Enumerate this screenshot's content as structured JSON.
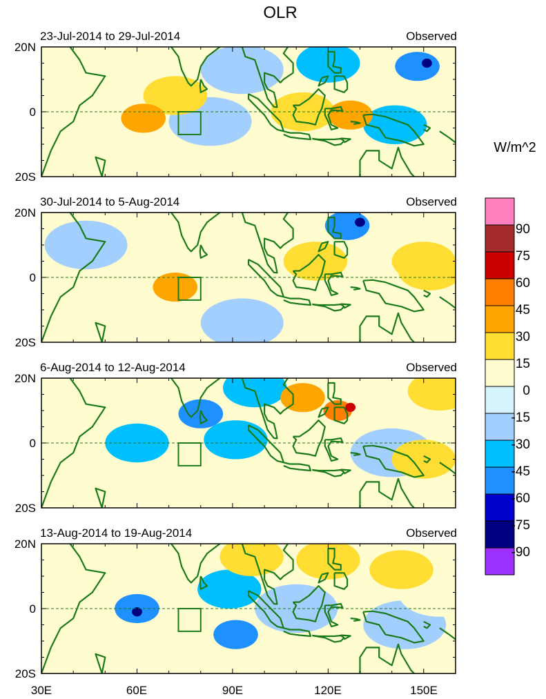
{
  "chart_data": {
    "type": "heatmap",
    "title": "OLR",
    "units": "W/m^2",
    "x_ticks": [
      "30E",
      "60E",
      "90E",
      "120E",
      "150E"
    ],
    "y_ticks": [
      "20N",
      "0",
      "20S"
    ],
    "xlim": [
      30,
      160
    ],
    "ylim": [
      -20,
      20
    ],
    "box_region": {
      "lon": [
        73,
        80
      ],
      "lat": [
        -7,
        0
      ]
    },
    "colorbar": {
      "levels": [
        90,
        75,
        60,
        45,
        30,
        15,
        0,
        -15,
        -30,
        -45,
        -60,
        -75,
        -90
      ],
      "colors": [
        "#ff7fbf",
        "#a52a2a",
        "#cd0000",
        "#ff7f00",
        "#ffa500",
        "#ffdd33",
        "#fffcd0",
        "#d7f5ff",
        "#a3cfff",
        "#00bfff",
        "#1e90ff",
        "#0000cd",
        "#000080",
        "#9b30ff"
      ]
    },
    "panels": [
      {
        "period": "23-Jul-2014 to 29-Jul-2014",
        "label": "Observed",
        "anomalies": [
          {
            "lon": 72,
            "lat": 5,
            "value": 30
          },
          {
            "lon": 62,
            "lat": -2,
            "value": 45
          },
          {
            "lon": 112,
            "lat": 0,
            "value": 30
          },
          {
            "lon": 127,
            "lat": -1,
            "value": 45
          },
          {
            "lon": 83,
            "lat": -3,
            "value": -15
          },
          {
            "lon": 148,
            "lat": 14,
            "value": -45
          },
          {
            "lon": 151,
            "lat": 15,
            "value": -75
          },
          {
            "lon": 120,
            "lat": 15,
            "value": -30
          },
          {
            "lon": 93,
            "lat": 13,
            "value": -15
          },
          {
            "lon": 141,
            "lat": -4,
            "value": -30
          }
        ]
      },
      {
        "period": "30-Jul-2014 to 5-Aug-2014",
        "label": "Observed",
        "anomalies": [
          {
            "lon": 126,
            "lat": 16,
            "value": -45
          },
          {
            "lon": 130,
            "lat": 17,
            "value": -75
          },
          {
            "lon": 72,
            "lat": -3,
            "value": 45
          },
          {
            "lon": 150,
            "lat": 5,
            "value": 30
          },
          {
            "lon": 152,
            "lat": 2,
            "value": 30
          },
          {
            "lon": 116,
            "lat": 5,
            "value": 30
          },
          {
            "lon": 44,
            "lat": 10,
            "value": -15
          },
          {
            "lon": 93,
            "lat": -14,
            "value": -15
          },
          {
            "lon": 89,
            "lat": 15,
            "value": 15
          }
        ]
      },
      {
        "period": "6-Aug-2014 to 12-Aug-2014",
        "label": "Observed",
        "anomalies": [
          {
            "lon": 123,
            "lat": 10,
            "value": 60
          },
          {
            "lon": 127,
            "lat": 11,
            "value": 75
          },
          {
            "lon": 112,
            "lat": 14,
            "value": 45
          },
          {
            "lon": 80,
            "lat": 9,
            "value": -45
          },
          {
            "lon": 91,
            "lat": 1,
            "value": -30
          },
          {
            "lon": 60,
            "lat": 0,
            "value": -30
          },
          {
            "lon": 150,
            "lat": -5,
            "value": 30
          },
          {
            "lon": 155,
            "lat": 16,
            "value": 30
          },
          {
            "lon": 97,
            "lat": 17,
            "value": -30
          },
          {
            "lon": 140,
            "lat": -3,
            "value": -15
          }
        ]
      },
      {
        "period": "13-Aug-2014 to 19-Aug-2014",
        "label": "Observed",
        "anomalies": [
          {
            "lon": 60,
            "lat": 0,
            "value": -45
          },
          {
            "lon": 60,
            "lat": -1,
            "value": -75
          },
          {
            "lon": 91,
            "lat": -8,
            "value": -45
          },
          {
            "lon": 89,
            "lat": 6,
            "value": -30
          },
          {
            "lon": 96,
            "lat": 16,
            "value": 30
          },
          {
            "lon": 120,
            "lat": 15,
            "value": 30
          },
          {
            "lon": 143,
            "lat": 12,
            "value": 30
          },
          {
            "lon": 110,
            "lat": 0,
            "value": -15
          },
          {
            "lon": 144,
            "lat": -5,
            "value": -15
          },
          {
            "lon": 155,
            "lat": 5,
            "value": 15
          }
        ]
      }
    ]
  }
}
